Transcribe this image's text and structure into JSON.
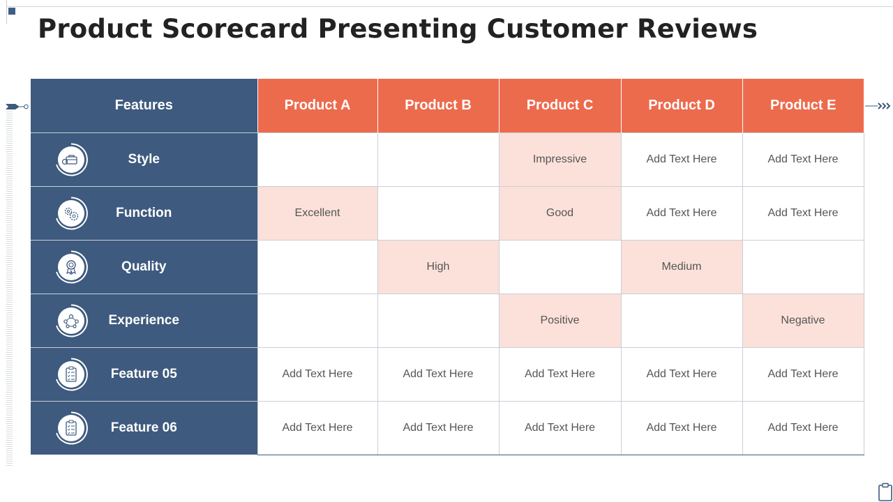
{
  "title": "Product Scorecard Presenting Customer Reviews",
  "colors": {
    "navy": "#3e5a7e",
    "orange": "#ec6b4d",
    "highlight": "#fbe1da"
  },
  "table": {
    "feature_header": "Features",
    "products": [
      "Product A",
      "Product B",
      "Product C",
      "Product D",
      "Product E"
    ],
    "rows": [
      {
        "feature": "Style",
        "icon": "briefcase-icon",
        "cells": [
          "",
          "",
          "Impressive",
          "Add Text Here",
          "Add Text Here"
        ],
        "highlighted": [
          false,
          false,
          true,
          false,
          false
        ]
      },
      {
        "feature": "Function",
        "icon": "gears-icon",
        "cells": [
          "Excellent",
          "",
          "Good",
          "Add Text Here",
          "Add Text Here"
        ],
        "highlighted": [
          true,
          false,
          true,
          false,
          false
        ]
      },
      {
        "feature": "Quality",
        "icon": "award-ribbon-icon",
        "cells": [
          "",
          "High",
          "",
          "Medium",
          ""
        ],
        "highlighted": [
          false,
          true,
          false,
          true,
          false
        ]
      },
      {
        "feature": "Experience",
        "icon": "people-network-icon",
        "cells": [
          "",
          "",
          "Positive",
          "",
          "Negative"
        ],
        "highlighted": [
          false,
          false,
          true,
          false,
          true
        ]
      },
      {
        "feature": "Feature 05",
        "icon": "clipboard-checklist-icon",
        "cells": [
          "Add Text Here",
          "Add Text Here",
          "Add Text Here",
          "Add Text Here",
          "Add Text Here"
        ],
        "highlighted": [
          false,
          false,
          false,
          false,
          false
        ]
      },
      {
        "feature": "Feature 06",
        "icon": "clipboard-checklist-icon",
        "cells": [
          "Add Text Here",
          "Add Text Here",
          "Add Text Here",
          "Add Text Here",
          "Add Text Here"
        ],
        "highlighted": [
          false,
          false,
          false,
          false,
          false
        ]
      }
    ]
  }
}
